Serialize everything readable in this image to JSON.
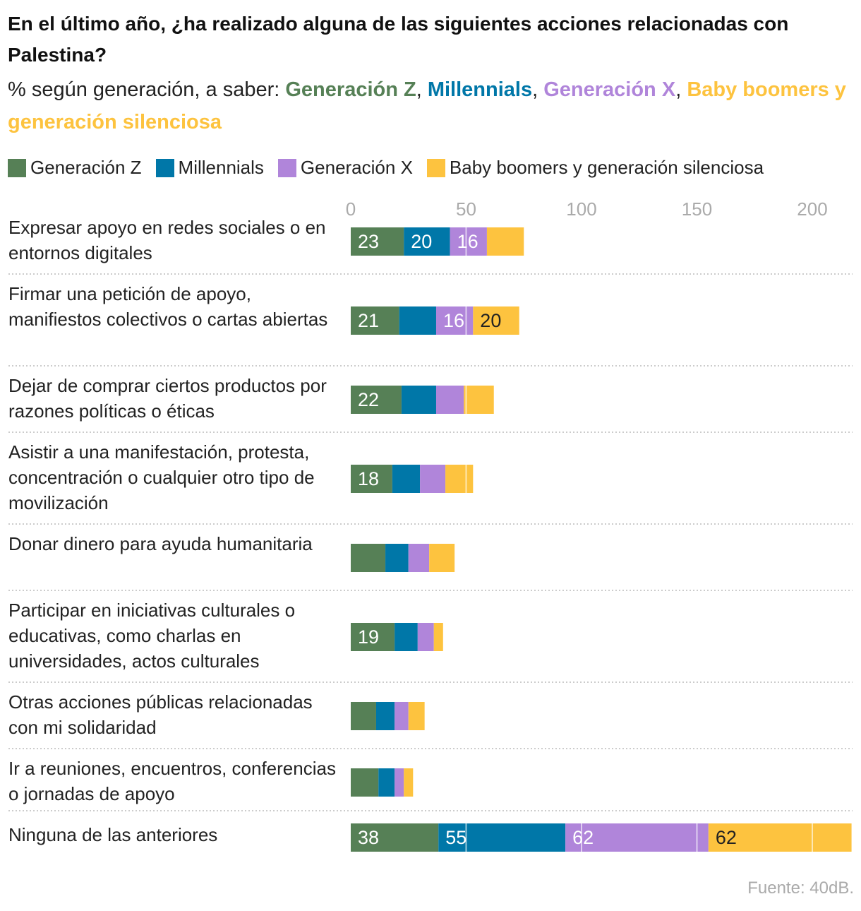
{
  "title": "En el último año, ¿ha realizado alguna de las siguientes acciones relacionadas con Palestina?",
  "subtitle_prefix": "% según generación, a saber: ",
  "source": "Fuente: 40dB.",
  "colors": {
    "Generación Z": "#568056",
    "Millennials": "#0077a8",
    "Generación X": "#b085da",
    "Baby boomers y generación silenciosa": "#fdc33f"
  },
  "chart_data": {
    "type": "bar",
    "orientation": "horizontal",
    "stacked": true,
    "xlim": [
      0,
      215
    ],
    "xticks": [
      0,
      50,
      100,
      150,
      200
    ],
    "grid": true,
    "legend": "top",
    "series_names": [
      "Generación Z",
      "Millennials",
      "Generación X",
      "Baby boomers y generación silenciosa"
    ],
    "categories": [
      "Expresar apoyo en redes sociales o en entornos digitales",
      "Firmar una petición de apoyo, manifiestos colectivos o cartas abiertas",
      "Dejar de comprar ciertos productos por razones políticas o éticas",
      "Asistir a una manifestación, protesta, concentración o cualquier otro tipo de movilización",
      "Donar dinero para ayuda humanitaria",
      "Participar en iniciativas culturales o educativas, como charlas en universidades, actos culturales",
      "Otras acciones públicas relacionadas con mi solidaridad",
      "Ir a reuniones, encuentros, conferencias o jornadas de apoyo",
      "Ninguna de las anteriores"
    ],
    "values": [
      [
        23,
        20,
        16,
        16
      ],
      [
        21,
        16,
        16,
        20
      ],
      [
        22,
        15,
        12,
        13
      ],
      [
        18,
        12,
        11,
        12
      ],
      [
        15,
        10,
        9,
        11
      ],
      [
        19,
        10,
        7,
        4
      ],
      [
        11,
        8,
        6,
        7
      ],
      [
        12,
        7,
        4,
        4
      ],
      [
        38,
        55,
        62,
        62
      ]
    ],
    "labels": [
      [
        "23",
        "20",
        "16",
        ""
      ],
      [
        "21",
        "",
        "16",
        "20"
      ],
      [
        "22",
        "",
        "",
        ""
      ],
      [
        "18",
        "",
        "",
        ""
      ],
      [
        "",
        "",
        "",
        ""
      ],
      [
        "19",
        "",
        "",
        ""
      ],
      [
        "",
        "",
        "",
        ""
      ],
      [
        "",
        "",
        "",
        ""
      ],
      [
        "38",
        "55",
        "62",
        "62"
      ]
    ]
  }
}
